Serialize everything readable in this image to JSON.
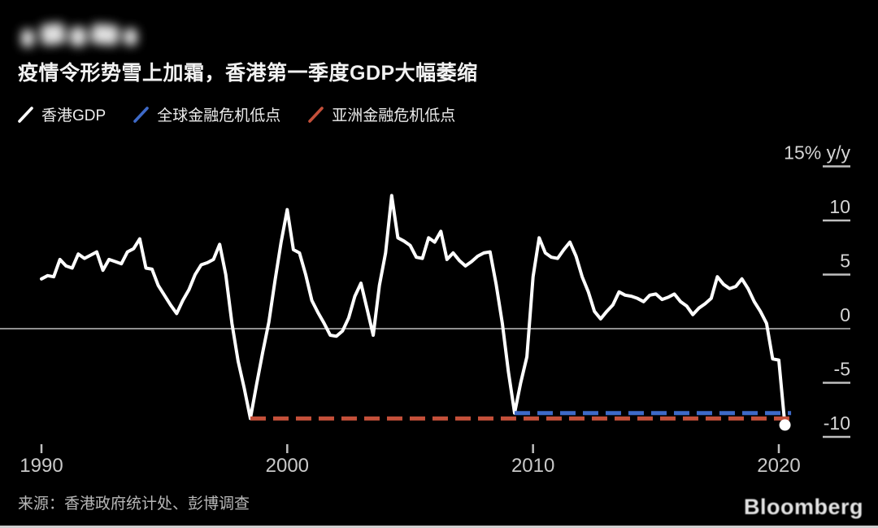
{
  "title": "疫情令形势雪上加霜，香港第一季度GDP大幅萎缩",
  "source": "来源：香港政府统计处、彭博调查",
  "brand": "Bloomberg",
  "colors": {
    "background": "#000000",
    "gdp_line": "#ffffff",
    "gfc_low": "#3e6ac8",
    "asian_crisis_low": "#c4503a",
    "zero_line": "#8f8f8f",
    "axis_text": "#d5d5d5",
    "tick": "#bfbfbf"
  },
  "legend": [
    {
      "label": "香港GDP",
      "color": "#ffffff",
      "icon": "diagonal-line-swatch-white"
    },
    {
      "label": "全球金融危机低点",
      "color": "#3e6ac8",
      "icon": "diagonal-line-swatch-blue"
    },
    {
      "label": "亚洲金融危机低点",
      "color": "#c4503a",
      "icon": "diagonal-line-swatch-red"
    }
  ],
  "chart_data": {
    "type": "line",
    "title": "疫情令形势雪上加霜，香港第一季度GDP大幅萎缩",
    "xlabel": "",
    "ylabel": "% y/y",
    "xlim": [
      1989.3,
      2021.2
    ],
    "ylim": [
      -12.5,
      16.5
    ],
    "grid": "zero-line-only",
    "legend_position": "top",
    "y_ticks": [
      {
        "v": 15,
        "label": "15% y/y"
      },
      {
        "v": 10,
        "label": "10"
      },
      {
        "v": 5,
        "label": "5"
      },
      {
        "v": 0,
        "label": "0"
      },
      {
        "v": -5,
        "label": "-5"
      },
      {
        "v": -10,
        "label": "-10"
      }
    ],
    "x_ticks": [
      {
        "v": 1990,
        "label": "1990"
      },
      {
        "v": 2000,
        "label": "2000"
      },
      {
        "v": 2010,
        "label": "2010"
      },
      {
        "v": 2020,
        "label": "2020"
      }
    ],
    "series": [
      {
        "name": "香港GDP",
        "color": "#ffffff",
        "points": [
          [
            1990.0,
            4.6
          ],
          [
            1990.25,
            4.9
          ],
          [
            1990.5,
            4.8
          ],
          [
            1990.75,
            6.4
          ],
          [
            1991.0,
            5.8
          ],
          [
            1991.25,
            5.6
          ],
          [
            1991.5,
            6.9
          ],
          [
            1991.75,
            6.5
          ],
          [
            1992.0,
            6.8
          ],
          [
            1992.25,
            7.1
          ],
          [
            1992.5,
            5.4
          ],
          [
            1992.75,
            6.4
          ],
          [
            1993.0,
            6.2
          ],
          [
            1993.25,
            6.0
          ],
          [
            1993.5,
            7.1
          ],
          [
            1993.75,
            7.4
          ],
          [
            1994.0,
            8.3
          ],
          [
            1994.25,
            5.6
          ],
          [
            1994.5,
            5.5
          ],
          [
            1994.75,
            4.0
          ],
          [
            1995.0,
            3.1
          ],
          [
            1995.25,
            2.2
          ],
          [
            1995.5,
            1.4
          ],
          [
            1995.75,
            2.6
          ],
          [
            1996.0,
            3.6
          ],
          [
            1996.25,
            5.0
          ],
          [
            1996.5,
            5.9
          ],
          [
            1996.75,
            6.1
          ],
          [
            1997.0,
            6.4
          ],
          [
            1997.25,
            7.8
          ],
          [
            1997.5,
            5.0
          ],
          [
            1997.75,
            0.5
          ],
          [
            1998.0,
            -3.0
          ],
          [
            1998.25,
            -5.5
          ],
          [
            1998.5,
            -8.3
          ],
          [
            1998.75,
            -5.2
          ],
          [
            1999.0,
            -2.2
          ],
          [
            1999.25,
            0.6
          ],
          [
            1999.5,
            4.4
          ],
          [
            1999.75,
            8.0
          ],
          [
            2000.0,
            11.0
          ],
          [
            2000.25,
            7.3
          ],
          [
            2000.5,
            7.0
          ],
          [
            2000.75,
            5.0
          ],
          [
            2001.0,
            2.6
          ],
          [
            2001.25,
            1.5
          ],
          [
            2001.5,
            0.5
          ],
          [
            2001.75,
            -0.6
          ],
          [
            2002.0,
            -0.7
          ],
          [
            2002.25,
            -0.2
          ],
          [
            2002.5,
            1.0
          ],
          [
            2002.75,
            3.0
          ],
          [
            2003.0,
            4.2
          ],
          [
            2003.25,
            1.8
          ],
          [
            2003.5,
            -0.6
          ],
          [
            2003.75,
            4.0
          ],
          [
            2004.0,
            7.0
          ],
          [
            2004.25,
            12.3
          ],
          [
            2004.5,
            8.4
          ],
          [
            2004.75,
            8.1
          ],
          [
            2005.0,
            7.7
          ],
          [
            2005.25,
            6.6
          ],
          [
            2005.5,
            6.5
          ],
          [
            2005.75,
            8.4
          ],
          [
            2006.0,
            8.0
          ],
          [
            2006.25,
            9.0
          ],
          [
            2006.5,
            6.4
          ],
          [
            2006.75,
            7.0
          ],
          [
            2007.0,
            6.3
          ],
          [
            2007.25,
            5.8
          ],
          [
            2007.5,
            6.2
          ],
          [
            2007.75,
            6.7
          ],
          [
            2008.0,
            7.0
          ],
          [
            2008.25,
            7.1
          ],
          [
            2008.5,
            4.1
          ],
          [
            2008.75,
            0.5
          ],
          [
            2009.0,
            -4.0
          ],
          [
            2009.25,
            -7.8
          ],
          [
            2009.5,
            -5.0
          ],
          [
            2009.75,
            -2.6
          ],
          [
            2010.0,
            4.8
          ],
          [
            2010.25,
            8.4
          ],
          [
            2010.5,
            7.0
          ],
          [
            2010.75,
            6.6
          ],
          [
            2011.0,
            6.5
          ],
          [
            2011.25,
            7.3
          ],
          [
            2011.5,
            8.0
          ],
          [
            2011.75,
            6.7
          ],
          [
            2012.0,
            4.8
          ],
          [
            2012.25,
            3.4
          ],
          [
            2012.5,
            1.6
          ],
          [
            2012.75,
            0.9
          ],
          [
            2013.0,
            1.6
          ],
          [
            2013.25,
            2.2
          ],
          [
            2013.5,
            3.4
          ],
          [
            2013.75,
            3.1
          ],
          [
            2014.0,
            3.0
          ],
          [
            2014.25,
            2.8
          ],
          [
            2014.5,
            2.5
          ],
          [
            2014.75,
            3.1
          ],
          [
            2015.0,
            3.2
          ],
          [
            2015.25,
            2.7
          ],
          [
            2015.5,
            2.9
          ],
          [
            2015.75,
            3.2
          ],
          [
            2016.0,
            2.5
          ],
          [
            2016.25,
            2.1
          ],
          [
            2016.5,
            1.3
          ],
          [
            2016.75,
            1.9
          ],
          [
            2017.0,
            2.3
          ],
          [
            2017.25,
            2.8
          ],
          [
            2017.5,
            4.8
          ],
          [
            2017.75,
            4.1
          ],
          [
            2018.0,
            3.7
          ],
          [
            2018.25,
            3.9
          ],
          [
            2018.5,
            4.6
          ],
          [
            2018.75,
            3.7
          ],
          [
            2019.0,
            2.5
          ],
          [
            2019.25,
            1.6
          ],
          [
            2019.5,
            0.5
          ],
          [
            2019.75,
            -2.8
          ],
          [
            2020.0,
            -2.9
          ],
          [
            2020.25,
            -8.9
          ]
        ]
      }
    ],
    "reference_lines": [
      {
        "name": "亚洲金融危机低点",
        "value": -8.3,
        "from": 1998.5,
        "to": 2020.5,
        "style": "dashed",
        "color": "#c4503a"
      },
      {
        "name": "全球金融危机低点",
        "value": -7.8,
        "from": 2009.25,
        "to": 2020.5,
        "style": "dashed",
        "color": "#3e6ac8"
      }
    ],
    "end_marker": {
      "t": 2020.25,
      "value": -8.9,
      "color": "#ffffff"
    }
  }
}
